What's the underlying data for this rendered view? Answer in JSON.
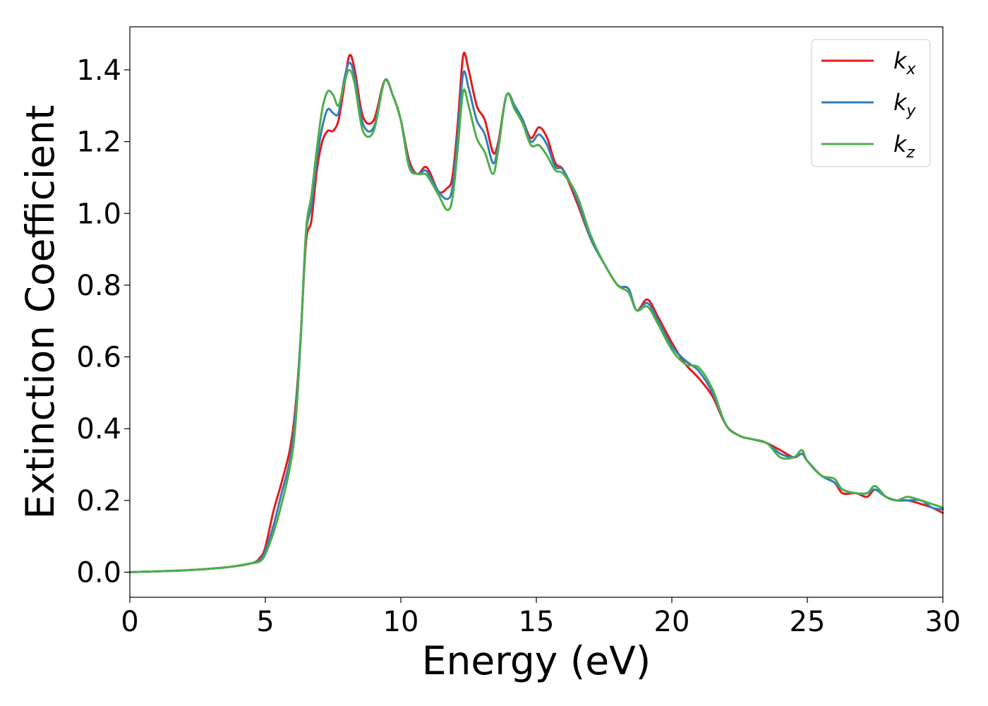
{
  "chart_data": {
    "type": "line",
    "title": "",
    "xlabel": "Energy (eV)",
    "ylabel": "Extinction Coefficient",
    "xlim": [
      0,
      30
    ],
    "ylim": [
      -0.07,
      1.52
    ],
    "xticks": [
      0,
      5,
      10,
      15,
      20,
      25,
      30
    ],
    "xtick_labels": [
      "0",
      "5",
      "10",
      "15",
      "20",
      "25",
      "30"
    ],
    "yticks": [
      0.0,
      0.2,
      0.4,
      0.6,
      0.8,
      1.0,
      1.2,
      1.4
    ],
    "ytick_labels": [
      "0.0",
      "0.2",
      "0.4",
      "0.6",
      "0.8",
      "1.0",
      "1.2",
      "1.4"
    ],
    "grid": false,
    "legend_position": "top-right",
    "series": [
      {
        "name": "k_x",
        "label_base": "k",
        "label_sub": "x",
        "color": "#e41a1c",
        "points": [
          [
            0,
            0.0
          ],
          [
            2,
            0.005
          ],
          [
            3.5,
            0.013
          ],
          [
            4.5,
            0.025
          ],
          [
            4.8,
            0.04
          ],
          [
            5.0,
            0.07
          ],
          [
            5.3,
            0.17
          ],
          [
            5.6,
            0.25
          ],
          [
            5.9,
            0.34
          ],
          [
            6.1,
            0.45
          ],
          [
            6.3,
            0.65
          ],
          [
            6.5,
            0.92
          ],
          [
            6.7,
            0.98
          ],
          [
            6.9,
            1.12
          ],
          [
            7.1,
            1.2
          ],
          [
            7.3,
            1.23
          ],
          [
            7.5,
            1.23
          ],
          [
            7.7,
            1.26
          ],
          [
            7.9,
            1.35
          ],
          [
            8.1,
            1.44
          ],
          [
            8.3,
            1.4
          ],
          [
            8.6,
            1.27
          ],
          [
            9.0,
            1.26
          ],
          [
            9.4,
            1.37
          ],
          [
            9.7,
            1.33
          ],
          [
            10.0,
            1.26
          ],
          [
            10.3,
            1.15
          ],
          [
            10.6,
            1.11
          ],
          [
            10.9,
            1.13
          ],
          [
            11.1,
            1.11
          ],
          [
            11.4,
            1.06
          ],
          [
            11.7,
            1.07
          ],
          [
            11.9,
            1.1
          ],
          [
            12.1,
            1.25
          ],
          [
            12.3,
            1.44
          ],
          [
            12.5,
            1.4
          ],
          [
            12.8,
            1.3
          ],
          [
            13.1,
            1.26
          ],
          [
            13.4,
            1.17
          ],
          [
            13.6,
            1.2
          ],
          [
            13.9,
            1.33
          ],
          [
            14.2,
            1.3
          ],
          [
            14.5,
            1.26
          ],
          [
            14.8,
            1.21
          ],
          [
            15.1,
            1.24
          ],
          [
            15.4,
            1.21
          ],
          [
            15.7,
            1.14
          ],
          [
            16.0,
            1.12
          ],
          [
            16.5,
            1.03
          ],
          [
            17.0,
            0.93
          ],
          [
            17.5,
            0.86
          ],
          [
            18.0,
            0.8
          ],
          [
            18.4,
            0.79
          ],
          [
            18.7,
            0.73
          ],
          [
            19.1,
            0.76
          ],
          [
            19.5,
            0.71
          ],
          [
            20.0,
            0.64
          ],
          [
            20.5,
            0.58
          ],
          [
            21.0,
            0.54
          ],
          [
            21.5,
            0.49
          ],
          [
            22.0,
            0.41
          ],
          [
            22.5,
            0.38
          ],
          [
            23.0,
            0.37
          ],
          [
            23.5,
            0.36
          ],
          [
            24.0,
            0.34
          ],
          [
            24.5,
            0.32
          ],
          [
            24.8,
            0.33
          ],
          [
            25.0,
            0.31
          ],
          [
            25.5,
            0.27
          ],
          [
            26.0,
            0.25
          ],
          [
            26.3,
            0.22
          ],
          [
            26.8,
            0.22
          ],
          [
            27.2,
            0.21
          ],
          [
            27.5,
            0.23
          ],
          [
            27.9,
            0.21
          ],
          [
            28.3,
            0.2
          ],
          [
            28.7,
            0.2
          ],
          [
            29.2,
            0.19
          ],
          [
            29.6,
            0.18
          ],
          [
            30.0,
            0.165
          ]
        ]
      },
      {
        "name": "k_y",
        "label_base": "k",
        "label_sub": "y",
        "color": "#377eb8",
        "points": [
          [
            0,
            0.0
          ],
          [
            2,
            0.005
          ],
          [
            3.5,
            0.013
          ],
          [
            4.5,
            0.025
          ],
          [
            4.8,
            0.035
          ],
          [
            5.0,
            0.06
          ],
          [
            5.3,
            0.13
          ],
          [
            5.6,
            0.22
          ],
          [
            5.9,
            0.31
          ],
          [
            6.1,
            0.43
          ],
          [
            6.3,
            0.65
          ],
          [
            6.5,
            0.94
          ],
          [
            6.7,
            1.02
          ],
          [
            6.9,
            1.15
          ],
          [
            7.1,
            1.24
          ],
          [
            7.3,
            1.29
          ],
          [
            7.5,
            1.28
          ],
          [
            7.7,
            1.28
          ],
          [
            7.9,
            1.37
          ],
          [
            8.1,
            1.42
          ],
          [
            8.3,
            1.38
          ],
          [
            8.6,
            1.25
          ],
          [
            9.0,
            1.24
          ],
          [
            9.4,
            1.37
          ],
          [
            9.7,
            1.33
          ],
          [
            10.0,
            1.26
          ],
          [
            10.3,
            1.14
          ],
          [
            10.6,
            1.11
          ],
          [
            10.9,
            1.12
          ],
          [
            11.1,
            1.1
          ],
          [
            11.4,
            1.06
          ],
          [
            11.7,
            1.04
          ],
          [
            11.9,
            1.07
          ],
          [
            12.1,
            1.22
          ],
          [
            12.3,
            1.39
          ],
          [
            12.5,
            1.35
          ],
          [
            12.8,
            1.26
          ],
          [
            13.1,
            1.22
          ],
          [
            13.4,
            1.14
          ],
          [
            13.6,
            1.19
          ],
          [
            13.9,
            1.33
          ],
          [
            14.2,
            1.3
          ],
          [
            14.5,
            1.26
          ],
          [
            14.8,
            1.2
          ],
          [
            15.1,
            1.22
          ],
          [
            15.4,
            1.19
          ],
          [
            15.7,
            1.13
          ],
          [
            16.0,
            1.12
          ],
          [
            16.5,
            1.04
          ],
          [
            17.0,
            0.93
          ],
          [
            17.5,
            0.86
          ],
          [
            18.0,
            0.8
          ],
          [
            18.4,
            0.79
          ],
          [
            18.7,
            0.73
          ],
          [
            19.1,
            0.75
          ],
          [
            19.5,
            0.7
          ],
          [
            20.0,
            0.63
          ],
          [
            20.5,
            0.59
          ],
          [
            21.0,
            0.56
          ],
          [
            21.5,
            0.5
          ],
          [
            22.0,
            0.41
          ],
          [
            22.5,
            0.38
          ],
          [
            23.0,
            0.37
          ],
          [
            23.5,
            0.36
          ],
          [
            24.0,
            0.33
          ],
          [
            24.5,
            0.32
          ],
          [
            24.8,
            0.33
          ],
          [
            25.0,
            0.31
          ],
          [
            25.5,
            0.27
          ],
          [
            26.0,
            0.25
          ],
          [
            26.3,
            0.23
          ],
          [
            26.8,
            0.22
          ],
          [
            27.2,
            0.22
          ],
          [
            27.5,
            0.23
          ],
          [
            27.9,
            0.21
          ],
          [
            28.3,
            0.2
          ],
          [
            28.7,
            0.2
          ],
          [
            29.2,
            0.2
          ],
          [
            29.6,
            0.18
          ],
          [
            30.0,
            0.175
          ]
        ]
      },
      {
        "name": "k_z",
        "label_base": "k",
        "label_sub": "z",
        "color": "#4daf4a",
        "points": [
          [
            0,
            0.0
          ],
          [
            2,
            0.005
          ],
          [
            3.5,
            0.013
          ],
          [
            4.5,
            0.025
          ],
          [
            4.8,
            0.03
          ],
          [
            5.0,
            0.05
          ],
          [
            5.3,
            0.11
          ],
          [
            5.6,
            0.19
          ],
          [
            5.9,
            0.29
          ],
          [
            6.1,
            0.4
          ],
          [
            6.3,
            0.64
          ],
          [
            6.5,
            0.95
          ],
          [
            6.7,
            1.05
          ],
          [
            6.9,
            1.18
          ],
          [
            7.1,
            1.29
          ],
          [
            7.3,
            1.34
          ],
          [
            7.5,
            1.33
          ],
          [
            7.7,
            1.3
          ],
          [
            7.9,
            1.36
          ],
          [
            8.1,
            1.4
          ],
          [
            8.3,
            1.36
          ],
          [
            8.6,
            1.23
          ],
          [
            9.0,
            1.23
          ],
          [
            9.4,
            1.37
          ],
          [
            9.7,
            1.33
          ],
          [
            10.0,
            1.26
          ],
          [
            10.3,
            1.13
          ],
          [
            10.6,
            1.11
          ],
          [
            10.9,
            1.11
          ],
          [
            11.1,
            1.09
          ],
          [
            11.4,
            1.05
          ],
          [
            11.7,
            1.01
          ],
          [
            11.9,
            1.04
          ],
          [
            12.1,
            1.18
          ],
          [
            12.3,
            1.34
          ],
          [
            12.5,
            1.3
          ],
          [
            12.8,
            1.21
          ],
          [
            13.1,
            1.17
          ],
          [
            13.4,
            1.11
          ],
          [
            13.6,
            1.18
          ],
          [
            13.9,
            1.33
          ],
          [
            14.2,
            1.29
          ],
          [
            14.5,
            1.25
          ],
          [
            14.8,
            1.19
          ],
          [
            15.1,
            1.19
          ],
          [
            15.4,
            1.16
          ],
          [
            15.7,
            1.12
          ],
          [
            16.0,
            1.11
          ],
          [
            16.5,
            1.05
          ],
          [
            17.0,
            0.94
          ],
          [
            17.5,
            0.86
          ],
          [
            18.0,
            0.8
          ],
          [
            18.4,
            0.78
          ],
          [
            18.7,
            0.73
          ],
          [
            19.1,
            0.74
          ],
          [
            19.5,
            0.69
          ],
          [
            20.0,
            0.62
          ],
          [
            20.5,
            0.58
          ],
          [
            21.0,
            0.57
          ],
          [
            21.5,
            0.51
          ],
          [
            22.0,
            0.41
          ],
          [
            22.5,
            0.38
          ],
          [
            23.0,
            0.37
          ],
          [
            23.5,
            0.36
          ],
          [
            24.0,
            0.32
          ],
          [
            24.5,
            0.32
          ],
          [
            24.8,
            0.34
          ],
          [
            25.0,
            0.31
          ],
          [
            25.5,
            0.27
          ],
          [
            26.0,
            0.26
          ],
          [
            26.3,
            0.23
          ],
          [
            26.8,
            0.22
          ],
          [
            27.2,
            0.22
          ],
          [
            27.5,
            0.24
          ],
          [
            27.9,
            0.21
          ],
          [
            28.3,
            0.2
          ],
          [
            28.7,
            0.21
          ],
          [
            29.2,
            0.2
          ],
          [
            29.6,
            0.19
          ],
          [
            30.0,
            0.18
          ]
        ]
      }
    ]
  }
}
